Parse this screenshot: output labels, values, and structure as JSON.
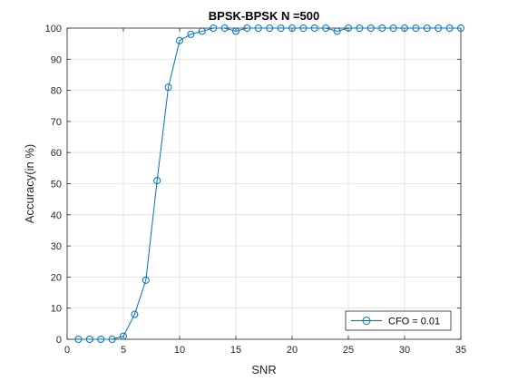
{
  "chart_data": {
    "type": "line",
    "title": "BPSK-BPSK N =500",
    "xlabel": "SNR",
    "ylabel": "Accuracy(in %)",
    "xlim": [
      0,
      35
    ],
    "ylim": [
      0,
      100
    ],
    "xticks": [
      0,
      5,
      10,
      15,
      20,
      25,
      30,
      35
    ],
    "yticks": [
      0,
      10,
      20,
      30,
      40,
      50,
      60,
      70,
      80,
      90,
      100
    ],
    "grid": true,
    "legend_position": "bottom-right",
    "series": [
      {
        "name": "CFO = 0.01",
        "color": "#0072BD",
        "marker": "circle",
        "x": [
          1,
          2,
          3,
          4,
          5,
          6,
          7,
          8,
          9,
          10,
          11,
          12,
          13,
          14,
          15,
          16,
          17,
          18,
          19,
          20,
          21,
          22,
          23,
          24,
          25,
          26,
          27,
          28,
          29,
          30,
          31,
          32,
          33,
          34,
          35
        ],
        "y": [
          0,
          0,
          0,
          0,
          1,
          8,
          19,
          51,
          81,
          96,
          98,
          99,
          100,
          100,
          99,
          100,
          100,
          100,
          100,
          100,
          100,
          100,
          100,
          99,
          100,
          100,
          100,
          100,
          100,
          100,
          100,
          100,
          100,
          100,
          100
        ]
      }
    ]
  }
}
